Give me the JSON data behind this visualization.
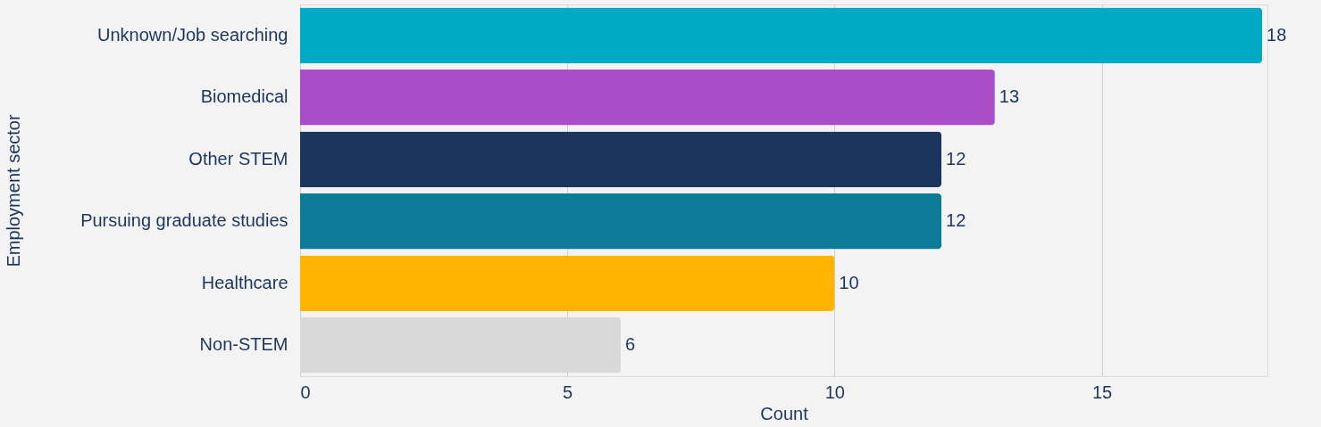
{
  "chart_data": {
    "type": "bar",
    "orientation": "horizontal",
    "xlabel": "Count",
    "ylabel": "Employment sector",
    "categories": [
      "Unknown/Job searching",
      "Biomedical",
      "Other STEM",
      "Pursuing graduate studies",
      "Healthcare",
      "Non-STEM"
    ],
    "values": [
      18,
      13,
      12,
      12,
      10,
      6
    ],
    "colors": [
      "#00aac7",
      "#a94ec7",
      "#1c355e",
      "#0d7a9a",
      "#ffb500",
      "#d9d9d9"
    ],
    "xlim": [
      0,
      18.1
    ],
    "xticks": [
      0,
      5,
      10,
      15
    ],
    "grid": "x",
    "data_labels": true
  }
}
